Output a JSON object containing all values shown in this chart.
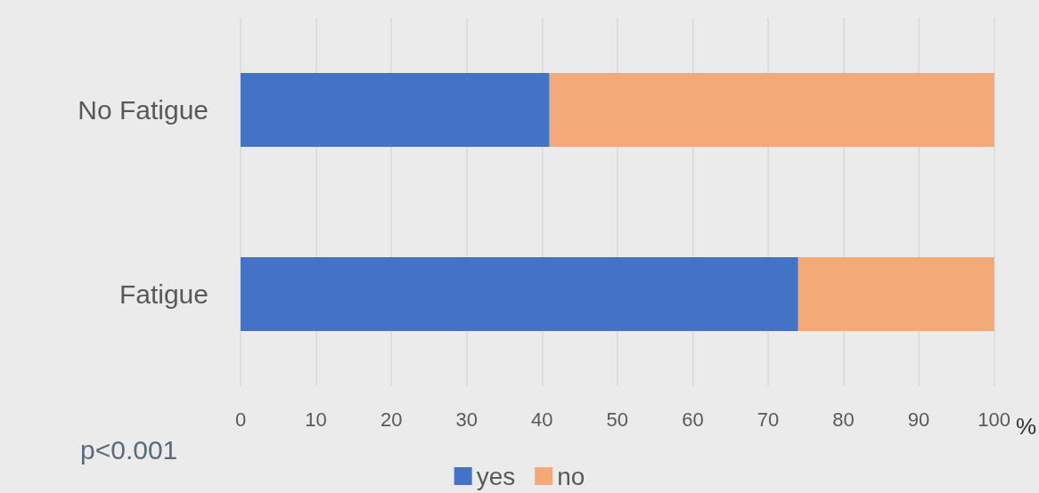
{
  "chart_data": {
    "type": "bar",
    "orientation": "horizontal",
    "stacked": true,
    "categories": [
      "No Fatigue",
      "Fatigue"
    ],
    "series": [
      {
        "name": "yes",
        "color": "#4472c4",
        "values": [
          41,
          74
        ]
      },
      {
        "name": "no",
        "color": "#f4a978",
        "values": [
          59,
          26
        ]
      }
    ],
    "xlim": [
      0,
      100
    ],
    "xticks": [
      0,
      10,
      20,
      30,
      40,
      50,
      60,
      70,
      80,
      90,
      100
    ],
    "xlabel": "%",
    "grid": "x",
    "legend": "bottom",
    "annotations": [
      "p<0.001"
    ]
  }
}
